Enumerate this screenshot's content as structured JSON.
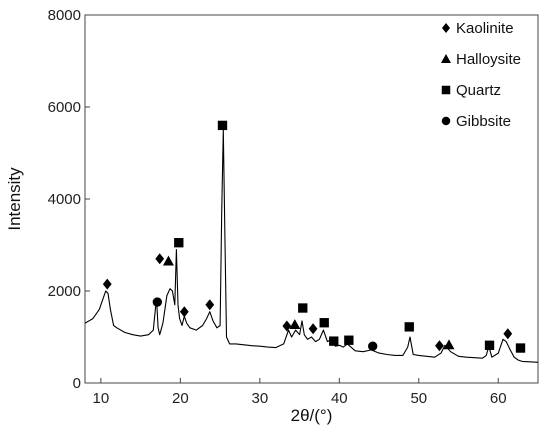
{
  "chart_data": {
    "type": "line",
    "title": "",
    "xlabel": "2θ/(°)",
    "ylabel": "Intensity",
    "xlim": [
      8,
      65
    ],
    "ylim": [
      0,
      8000
    ],
    "x_ticks": [
      "10",
      "20",
      "30",
      "40",
      "50",
      "60"
    ],
    "y_ticks": [
      "0",
      "2000",
      "4000",
      "6000",
      "8000"
    ],
    "grid": false,
    "legend_position": "top-right",
    "legend": [
      {
        "marker": "diamond",
        "label": "Kaolinite"
      },
      {
        "marker": "triangle",
        "label": "Halloysite"
      },
      {
        "marker": "square",
        "label": "Quartz"
      },
      {
        "marker": "circle",
        "label": "Gibbsite"
      }
    ],
    "series": [
      {
        "color": "#000000",
        "x": [
          8.0,
          9.0,
          9.8,
          10.3,
          10.6,
          10.9,
          11.2,
          11.6,
          12.0,
          13.0,
          14.0,
          15.0,
          16.0,
          16.6,
          17.0,
          17.2,
          17.4,
          17.8,
          18.3,
          18.7,
          19.0,
          19.3,
          19.5,
          19.7,
          19.9,
          20.2,
          20.5,
          20.8,
          21.2,
          22.0,
          22.8,
          23.3,
          23.7,
          24.1,
          24.6,
          25.0,
          25.2,
          25.4,
          25.6,
          25.8,
          26.2,
          27.0,
          28.0,
          29.0,
          30.0,
          31.0,
          32.0,
          33.0,
          33.6,
          34.0,
          34.5,
          35.0,
          35.3,
          35.6,
          36.0,
          36.5,
          37.0,
          37.5,
          38.0,
          38.5,
          39.0,
          39.5,
          40.0,
          40.5,
          41.0,
          42.0,
          43.0,
          44.0,
          45.0,
          46.0,
          47.0,
          48.0,
          48.6,
          48.9,
          49.3,
          50.0,
          51.0,
          52.0,
          52.8,
          53.3,
          54.0,
          55.0,
          56.0,
          57.0,
          58.0,
          58.5,
          58.8,
          59.2,
          60.0,
          60.6,
          61.0,
          61.5,
          62.0,
          62.5,
          63.0,
          64.0,
          65.0
        ],
        "y": [
          1300,
          1400,
          1600,
          1850,
          2000,
          1950,
          1600,
          1250,
          1200,
          1100,
          1050,
          1020,
          1050,
          1150,
          1850,
          1200,
          1050,
          1300,
          1900,
          2050,
          2000,
          1700,
          2900,
          1700,
          1400,
          1250,
          1450,
          1300,
          1200,
          1150,
          1250,
          1400,
          1550,
          1350,
          1200,
          1250,
          3700,
          5500,
          3200,
          1000,
          850,
          850,
          830,
          810,
          800,
          780,
          770,
          850,
          1150,
          1000,
          1150,
          1050,
          1350,
          1050,
          950,
          1000,
          900,
          950,
          1150,
          900,
          950,
          800,
          820,
          780,
          850,
          700,
          680,
          720,
          650,
          620,
          600,
          600,
          780,
          1000,
          620,
          600,
          580,
          560,
          650,
          820,
          680,
          580,
          560,
          550,
          540,
          600,
          800,
          560,
          650,
          950,
          900,
          720,
          560,
          500,
          470,
          460,
          450
        ]
      }
    ],
    "annotations": [
      {
        "marker": "diamond",
        "x": 10.8,
        "y": 2150
      },
      {
        "marker": "circle",
        "x": 17.1,
        "y": 1760
      },
      {
        "marker": "diamond",
        "x": 17.4,
        "y": 2700
      },
      {
        "marker": "triangle",
        "x": 18.5,
        "y": 2650
      },
      {
        "marker": "square",
        "x": 19.8,
        "y": 3050
      },
      {
        "marker": "diamond",
        "x": 20.5,
        "y": 1550
      },
      {
        "marker": "diamond",
        "x": 23.7,
        "y": 1700
      },
      {
        "marker": "square",
        "x": 25.3,
        "y": 5600
      },
      {
        "marker": "diamond",
        "x": 33.4,
        "y": 1240
      },
      {
        "marker": "triangle",
        "x": 34.4,
        "y": 1270
      },
      {
        "marker": "square",
        "x": 35.4,
        "y": 1630
      },
      {
        "marker": "diamond",
        "x": 36.7,
        "y": 1180
      },
      {
        "marker": "square",
        "x": 38.1,
        "y": 1310
      },
      {
        "marker": "square",
        "x": 39.3,
        "y": 910
      },
      {
        "marker": "square",
        "x": 41.2,
        "y": 930
      },
      {
        "marker": "circle",
        "x": 44.2,
        "y": 800
      },
      {
        "marker": "square",
        "x": 48.8,
        "y": 1220
      },
      {
        "marker": "diamond",
        "x": 52.6,
        "y": 810
      },
      {
        "marker": "triangle",
        "x": 53.8,
        "y": 830
      },
      {
        "marker": "square",
        "x": 58.9,
        "y": 820
      },
      {
        "marker": "diamond",
        "x": 61.2,
        "y": 1070
      },
      {
        "marker": "square",
        "x": 62.8,
        "y": 760
      }
    ]
  }
}
